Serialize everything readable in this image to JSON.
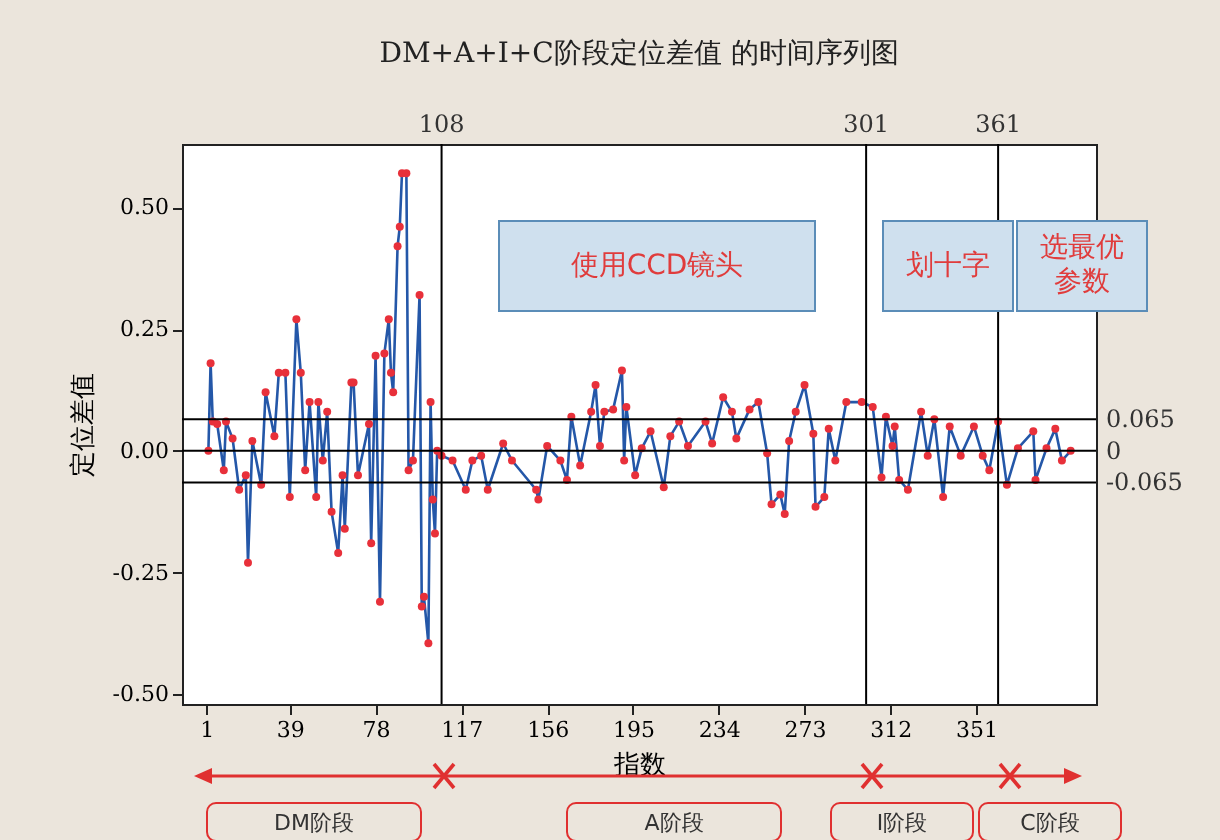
{
  "chart_data": {
    "type": "line",
    "title": "DM+A+I+C阶段定位差值 的时间序列图",
    "xlabel": "指数",
    "ylabel": "定位差值",
    "x": [
      2,
      3,
      4,
      6,
      9,
      10,
      13,
      16,
      19,
      20,
      22,
      26,
      28,
      32,
      34,
      37,
      39,
      42,
      44,
      46,
      48,
      51,
      52,
      54,
      56,
      58,
      61,
      63,
      64,
      67,
      68,
      70,
      75,
      76,
      78,
      80,
      82,
      84,
      85,
      86,
      88,
      89,
      90,
      92,
      93,
      95,
      98,
      99,
      100,
      102,
      103,
      104,
      105,
      106,
      108,
      113,
      119,
      122,
      126,
      129,
      136,
      140,
      151,
      152,
      156,
      162,
      165,
      167,
      171,
      176,
      178,
      180,
      182,
      186,
      190,
      191,
      192,
      196,
      199,
      203,
      209,
      212,
      216,
      220,
      228,
      231,
      236,
      240,
      242,
      248,
      252,
      256,
      258,
      262,
      264,
      266,
      269,
      273,
      277,
      278,
      282,
      284,
      287,
      292,
      299,
      304,
      308,
      310,
      313,
      314,
      316,
      320,
      326,
      329,
      332,
      336,
      339,
      344,
      350,
      354,
      357,
      361,
      365,
      370,
      377,
      378,
      383,
      387,
      390,
      394
    ],
    "series": [
      {
        "color": "#2457a8",
        "values": [
          0.0,
          0.18,
          0.06,
          0.055,
          -0.04,
          0.06,
          0.025,
          -0.08,
          -0.05,
          -0.23,
          0.02,
          -0.07,
          0.12,
          0.03,
          0.16,
          0.16,
          -0.095,
          0.27,
          0.16,
          -0.04,
          0.1,
          -0.095,
          0.1,
          -0.02,
          0.08,
          -0.125,
          -0.21,
          -0.05,
          -0.16,
          0.14,
          0.14,
          -0.05,
          0.055,
          -0.19,
          0.195,
          -0.31,
          0.2,
          0.27,
          0.16,
          0.12,
          0.42,
          0.46,
          0.57,
          0.57,
          -0.04,
          -0.02,
          0.32,
          -0.32,
          -0.3,
          -0.395,
          0.1,
          -0.1,
          -0.17,
          0.0,
          -0.01,
          -0.02,
          -0.08,
          -0.02,
          -0.01,
          -0.08,
          0.015,
          -0.02,
          -0.08,
          -0.1,
          0.01,
          -0.02,
          -0.06,
          0.07,
          -0.03,
          0.08,
          0.135,
          0.01,
          0.08,
          0.085,
          0.165,
          -0.02,
          0.09,
          -0.05,
          0.005,
          0.04,
          -0.075,
          0.03,
          0.06,
          0.01,
          0.06,
          0.015,
          0.11,
          0.08,
          0.025,
          0.085,
          0.1,
          -0.005,
          -0.11,
          -0.09,
          -0.13,
          0.02,
          0.08,
          0.135,
          0.035,
          -0.115,
          -0.095,
          0.045,
          -0.02,
          0.1,
          0.1,
          0.09,
          -0.055,
          0.07,
          0.01,
          0.05,
          -0.06,
          -0.08,
          0.08,
          -0.01,
          0.065,
          -0.095,
          0.05,
          -0.01,
          0.05,
          -0.01,
          -0.04,
          0.06,
          -0.07,
          0.005,
          0.04,
          -0.06,
          0.005,
          0.045,
          -0.02,
          0.0
        ]
      }
    ],
    "xlim": [
      -10,
      405.5
    ],
    "ylim": [
      -0.52,
      0.63
    ],
    "xticks": [
      1,
      39,
      78,
      117,
      156,
      195,
      234,
      273,
      312,
      351
    ],
    "yticks": [
      {
        "value": 0.5,
        "label": "0.50"
      },
      {
        "value": 0.25,
        "label": "0.25"
      },
      {
        "value": 0,
        "label": "0.00"
      },
      {
        "value": -0.25,
        "label": "-0.25"
      },
      {
        "value": -0.5,
        "label": "-0.50"
      }
    ],
    "ref_lines": [
      {
        "axis": "x",
        "value": 108,
        "label": "108",
        "color": "#000000"
      },
      {
        "axis": "x",
        "value": 301,
        "label": "301",
        "color": "#000000"
      },
      {
        "axis": "x",
        "value": 361,
        "label": "361",
        "color": "#000000"
      },
      {
        "axis": "y",
        "value": 0.065,
        "label": "0.065",
        "color": "#000000"
      },
      {
        "axis": "y",
        "value": 0,
        "label": "0",
        "color": "#000000"
      },
      {
        "axis": "y",
        "value": -0.065,
        "label": "-0.065",
        "color": "#000000"
      }
    ],
    "annotations": [
      "使用CCD镜头",
      "划十字",
      "选最优参数",
      "DM阶段",
      "A阶段",
      "I阶段",
      "C阶段"
    ],
    "grid": false,
    "marker": "circle",
    "line_style": "solid"
  }
}
